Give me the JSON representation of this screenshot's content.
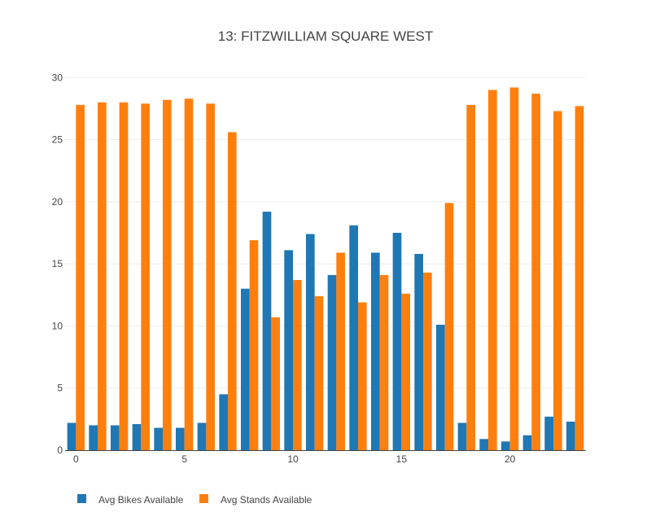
{
  "chart_data": {
    "type": "bar",
    "title": "13: FITZWILLIAM SQUARE WEST",
    "xlabel": "",
    "ylabel": "",
    "x": [
      0,
      1,
      2,
      3,
      4,
      5,
      6,
      7,
      8,
      9,
      10,
      11,
      12,
      13,
      14,
      15,
      16,
      17,
      18,
      19,
      20,
      21,
      22,
      23
    ],
    "xticks": [
      0,
      5,
      10,
      15,
      20
    ],
    "xlim": [
      -0.5,
      23.5
    ],
    "ylim": [
      0,
      31
    ],
    "yticks": [
      0,
      5,
      10,
      15,
      20,
      25,
      30
    ],
    "grid": true,
    "legend_position": "bottom-left",
    "series": [
      {
        "name": "Avg Bikes Available",
        "color": "#1f77b4",
        "values": [
          2.2,
          2.0,
          2.0,
          2.1,
          1.8,
          1.8,
          2.2,
          4.5,
          13.0,
          19.2,
          16.1,
          17.4,
          14.1,
          18.1,
          15.9,
          17.5,
          15.8,
          10.1,
          2.2,
          0.9,
          0.7,
          1.2,
          2.7,
          2.3
        ]
      },
      {
        "name": "Avg Stands Available",
        "color": "#ff7f0e",
        "values": [
          27.8,
          28.0,
          28.0,
          27.9,
          28.2,
          28.3,
          27.9,
          25.6,
          16.9,
          10.7,
          13.7,
          12.4,
          15.9,
          11.9,
          14.1,
          12.6,
          14.3,
          19.9,
          27.8,
          29.0,
          29.2,
          28.7,
          27.3,
          27.7
        ]
      }
    ]
  }
}
